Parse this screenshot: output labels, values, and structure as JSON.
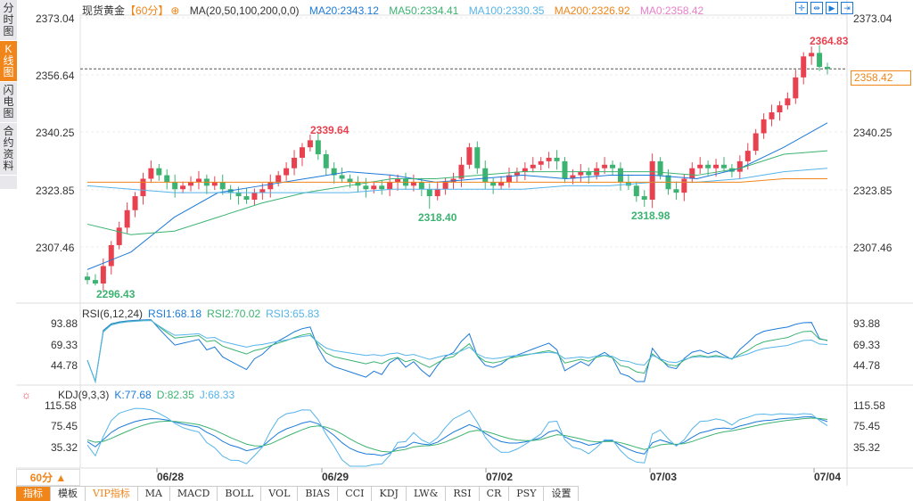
{
  "sidebar": {
    "items": [
      {
        "label": "分时图"
      },
      {
        "label": "K线图",
        "active": true
      },
      {
        "label": "闪电图"
      },
      {
        "label": "合约资料"
      }
    ]
  },
  "header": {
    "title": "现货黄金",
    "period": "【60分】",
    "ma_label": "MA(20,50,100,200,0,0)",
    "ma20": "MA20:2343.12",
    "ma50": "MA50:2334.41",
    "ma100": "MA100:2330.35",
    "ma200": "MA200:2326.92",
    "ma0": "MA0:2358.42"
  },
  "tool_icons": [
    "crosshair-icon",
    "fit-icon",
    "play-icon",
    "end-icon"
  ],
  "price_axis": [
    "2373.04",
    "2356.64",
    "2340.25",
    "2323.85",
    "2307.46"
  ],
  "current_price": "2358.42",
  "annotations": {
    "high": "2364.83",
    "low": "2296.43",
    "p1": "2339.64",
    "p2": "2318.40",
    "p3": "2318.98"
  },
  "rsi": {
    "label": "RSI(6,12,24)",
    "rsi1": "RSI1:68.18",
    "rsi2": "RSI2:70.02",
    "rsi3": "RSI3:65.83",
    "axis": [
      "93.88",
      "69.33",
      "44.78"
    ]
  },
  "kdj": {
    "label": "KDJ(9,3,3)",
    "k": "K:77.68",
    "d": "D:82.35",
    "j": "J:68.33",
    "axis": [
      "115.58",
      "75.45",
      "35.32"
    ]
  },
  "x_axis": [
    "06/28",
    "06/29",
    "07/02",
    "07/03",
    "07/04"
  ],
  "period_selector": "60分 ▲",
  "toolbar": [
    "指标",
    "模板",
    "VIP指标",
    "MA",
    "MACD",
    "BOLL",
    "VOL",
    "BIAS",
    "CCI",
    "KDJ",
    "LW&",
    "RSI",
    "CR",
    "PSY",
    "设置"
  ],
  "colors": {
    "up": "#e8414f",
    "down": "#3cb371",
    "ma20": "#1c7ad8",
    "ma50": "#3cb371",
    "ma100": "#56b4e9",
    "ma200": "#f08519",
    "ma0": "#e87fc9",
    "accent": "#f08519"
  },
  "chart_data": {
    "type": "candlestick",
    "ylim": [
      2296.43,
      2373.04
    ],
    "closes": [
      2298,
      2297,
      2302,
      2308,
      2313,
      2318,
      2322,
      2327,
      2330,
      2328,
      2326,
      2324,
      2325,
      2326,
      2327,
      2325,
      2326,
      2324,
      2323,
      2322,
      2321,
      2323,
      2324,
      2326,
      2328,
      2330,
      2333,
      2336,
      2338,
      2334,
      2330,
      2328,
      2327,
      2326,
      2325,
      2324,
      2325,
      2324,
      2326,
      2327,
      2325,
      2326,
      2324,
      2322,
      2324,
      2326,
      2327,
      2331,
      2336,
      2330,
      2326,
      2325,
      2326,
      2328,
      2329,
      2330,
      2331,
      2332,
      2333,
      2332,
      2327,
      2328,
      2329,
      2328,
      2330,
      2331,
      2330,
      2326,
      2325,
      2322,
      2321,
      2332,
      2328,
      2324,
      2323,
      2327,
      2330,
      2331,
      2330,
      2331,
      2330,
      2329,
      2332,
      2335,
      2340,
      2344,
      2346,
      2348,
      2350,
      2356,
      2362,
      2363,
      2359,
      2358.42
    ],
    "ma_series": {
      "ma20": [
        2301,
        2306,
        2316,
        2323,
        2325,
        2327,
        2329,
        2328,
        2326,
        2327,
        2328,
        2327,
        2328,
        2328,
        2327,
        2330,
        2336,
        2343
      ],
      "ma50": [
        2314,
        2311,
        2312,
        2316,
        2320,
        2323,
        2325,
        2327,
        2327,
        2328,
        2329,
        2329,
        2329,
        2329,
        2328,
        2330,
        2334,
        2335
      ],
      "ma100": [
        2325,
        2324,
        2323,
        2323,
        2323,
        2323,
        2323,
        2324,
        2324,
        2324,
        2324,
        2325,
        2325,
        2326,
        2326,
        2327,
        2329,
        2330
      ],
      "ma200": [
        2326,
        2326,
        2326,
        2326,
        2326,
        2326,
        2326,
        2326,
        2326,
        2326,
        2326,
        2326,
        2326,
        2326,
        2326,
        2326,
        2327,
        2327
      ]
    }
  }
}
